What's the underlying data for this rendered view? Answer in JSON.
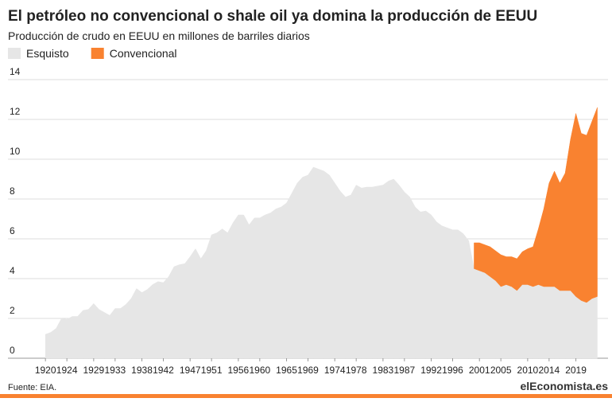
{
  "chart_data": {
    "type": "stacked_area",
    "title": "El petróleo no convencional o shale oil ya domina la producción de EEUU",
    "subtitle": "Producción de crudo en EEUU en millones de barriles diarios",
    "source": "Fuente: EIA.",
    "brand": "elEconomista.es",
    "x": [
      1920,
      1921,
      1922,
      1923,
      1924,
      1925,
      1926,
      1927,
      1928,
      1929,
      1930,
      1931,
      1932,
      1933,
      1934,
      1935,
      1936,
      1937,
      1938,
      1939,
      1940,
      1941,
      1942,
      1943,
      1944,
      1945,
      1946,
      1947,
      1948,
      1949,
      1950,
      1951,
      1952,
      1953,
      1954,
      1955,
      1956,
      1957,
      1958,
      1959,
      1960,
      1961,
      1962,
      1963,
      1964,
      1965,
      1966,
      1967,
      1968,
      1969,
      1970,
      1971,
      1972,
      1973,
      1974,
      1975,
      1976,
      1977,
      1978,
      1979,
      1980,
      1981,
      1982,
      1983,
      1984,
      1985,
      1986,
      1987,
      1988,
      1989,
      1990,
      1991,
      1992,
      1993,
      1994,
      1995,
      1996,
      1997,
      1998,
      1999,
      2000,
      2001,
      2002,
      2003,
      2004,
      2005,
      2006,
      2007,
      2008,
      2009,
      2010,
      2011,
      2012,
      2013,
      2014,
      2015,
      2016,
      2017,
      2018,
      2019,
      2020,
      2021,
      2022,
      2023
    ],
    "series": [
      {
        "name": "Esquisto",
        "color": "#e6e6e6",
        "values": [
          1.2,
          1.3,
          1.5,
          2.0,
          1.95,
          2.1,
          2.1,
          2.4,
          2.45,
          2.75,
          2.45,
          2.3,
          2.15,
          2.5,
          2.5,
          2.7,
          3.0,
          3.5,
          3.3,
          3.45,
          3.7,
          3.85,
          3.8,
          4.1,
          4.6,
          4.7,
          4.75,
          5.1,
          5.5,
          5.0,
          5.4,
          6.2,
          6.3,
          6.5,
          6.3,
          6.8,
          7.2,
          7.2,
          6.7,
          7.05,
          7.05,
          7.2,
          7.3,
          7.5,
          7.6,
          7.8,
          8.3,
          8.8,
          9.1,
          9.2,
          9.6,
          9.5,
          9.4,
          9.2,
          8.8,
          8.4,
          8.1,
          8.2,
          8.7,
          8.55,
          8.6,
          8.6,
          8.65,
          8.7,
          8.9,
          9.0,
          8.7,
          8.35,
          8.1,
          7.6,
          7.35,
          7.4,
          7.2,
          6.85,
          6.65,
          6.55,
          6.45,
          6.45,
          6.25,
          5.9,
          4.5,
          4.4,
          4.3,
          4.1,
          3.9,
          3.6,
          3.7,
          3.6,
          3.4,
          3.7,
          3.7,
          3.6,
          3.7,
          3.6,
          3.6,
          3.6,
          3.4,
          3.4,
          3.4,
          3.1,
          2.9,
          2.8,
          3.0,
          3.1
        ]
      },
      {
        "name": "Convencional",
        "color": "#f98230",
        "values": [
          null,
          null,
          null,
          null,
          null,
          null,
          null,
          null,
          null,
          null,
          null,
          null,
          null,
          null,
          null,
          null,
          null,
          null,
          null,
          null,
          null,
          null,
          null,
          null,
          null,
          null,
          null,
          null,
          null,
          null,
          null,
          null,
          null,
          null,
          null,
          null,
          null,
          null,
          null,
          null,
          null,
          null,
          null,
          null,
          null,
          null,
          null,
          null,
          null,
          null,
          null,
          null,
          null,
          null,
          null,
          null,
          null,
          null,
          null,
          null,
          null,
          null,
          null,
          null,
          null,
          null,
          null,
          null,
          null,
          null,
          null,
          null,
          null,
          null,
          null,
          null,
          null,
          null,
          null,
          null,
          1.3,
          1.4,
          1.4,
          1.5,
          1.5,
          1.6,
          1.4,
          1.5,
          1.6,
          1.65,
          1.8,
          2.0,
          2.8,
          3.9,
          5.2,
          5.8,
          5.4,
          5.9,
          7.6,
          9.2,
          8.4,
          8.4,
          8.9,
          9.5
        ]
      }
    ],
    "xlim": [
      1913,
      2025
    ],
    "xticks": [
      1920,
      1924,
      1929,
      1933,
      1938,
      1942,
      1947,
      1951,
      1956,
      1960,
      1965,
      1969,
      1974,
      1978,
      1983,
      1987,
      1992,
      1996,
      2001,
      2005,
      2010,
      2014,
      2019
    ],
    "ylim": [
      0,
      14
    ],
    "yticks": [
      0,
      2,
      4,
      6,
      8,
      10,
      12,
      14
    ],
    "grid": true,
    "legend": "top-left"
  }
}
